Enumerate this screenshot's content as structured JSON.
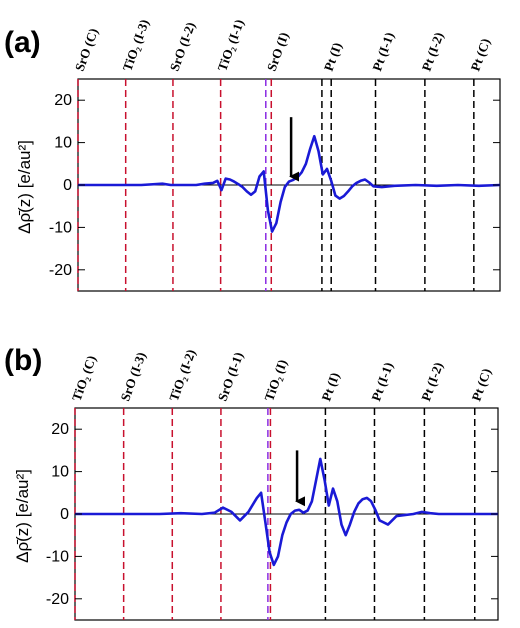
{
  "chart_data": [
    {
      "type": "line",
      "panel_label": "(a)",
      "ylabel": "Δρ̄(z)  [e/au²]",
      "ylim": [
        -25,
        25
      ],
      "yticks": [
        20,
        10,
        0,
        -10,
        -20
      ],
      "xlim": [
        0,
        100
      ],
      "grid": false,
      "layer_labels": [
        {
          "label": "SrO (C)",
          "x": 0,
          "color": "#c8102e"
        },
        {
          "label": "TiO₂ (I-3)",
          "x": 11.3,
          "color": "#c8102e"
        },
        {
          "label": "SrO (I-2)",
          "x": 22.5,
          "color": "#c8102e"
        },
        {
          "label": "TiO₂ (I-1)",
          "x": 33.8,
          "color": "#c8102e"
        },
        {
          "label": "SrO (I)",
          "x": 45.5,
          "color": "#c8102e"
        },
        {
          "label": "Pt (I)",
          "x": 59.0,
          "color": "#000000"
        },
        {
          "label": "Pt (I-1)",
          "x": 70.5,
          "color": "#000000"
        },
        {
          "label": "Pt (I-2)",
          "x": 82.2,
          "color": "#000000"
        },
        {
          "label": "Pt (C)",
          "x": 93.8,
          "color": "#000000"
        }
      ],
      "reference_lines": [
        {
          "x": 0,
          "color": "#c8102e"
        },
        {
          "x": 11.3,
          "color": "#c8102e"
        },
        {
          "x": 22.5,
          "color": "#c8102e"
        },
        {
          "x": 33.8,
          "color": "#c8102e"
        },
        {
          "x": 44.5,
          "color": "#8a2be2"
        },
        {
          "x": 45.8,
          "color": "#c8102e"
        },
        {
          "x": 57.8,
          "color": "#000000"
        },
        {
          "x": 60.0,
          "color": "#000000"
        },
        {
          "x": 70.5,
          "color": "#000000"
        },
        {
          "x": 82.2,
          "color": "#000000"
        },
        {
          "x": 93.8,
          "color": "#000000"
        }
      ],
      "arrow": {
        "x": 50.5,
        "y_from": 16,
        "y_to": 2
      },
      "series": [
        {
          "color": "#1a1ad6",
          "x": [
            0,
            5,
            10,
            15,
            20,
            22,
            24,
            26,
            28,
            30,
            32,
            33,
            34,
            35,
            36,
            37,
            38,
            39,
            40,
            41,
            42,
            43,
            44,
            45,
            46,
            47,
            48,
            49,
            50,
            51,
            52,
            53,
            54,
            55,
            56,
            57,
            58,
            59,
            60,
            61,
            62,
            63,
            64,
            65,
            66,
            67,
            68,
            69,
            70,
            72,
            75,
            80,
            85,
            90,
            95,
            100
          ],
          "y": [
            0,
            0,
            0,
            0,
            0.3,
            0,
            0,
            0,
            0,
            0.3,
            0.5,
            1,
            -1.2,
            1.5,
            1.3,
            0.8,
            0.2,
            -0.5,
            -1.5,
            -2.3,
            -1.5,
            2.0,
            3.2,
            -6,
            -11,
            -9,
            -4,
            -0.5,
            0.8,
            1.2,
            1.8,
            3.0,
            5.0,
            8.5,
            11.5,
            8.0,
            2.5,
            3.8,
            1.0,
            -2.5,
            -3.2,
            -2.6,
            -1.5,
            -0.3,
            0.5,
            1.0,
            1.3,
            0.6,
            -0.3,
            -0.5,
            -0.2,
            0,
            -0.2,
            0,
            -0.2,
            0
          ]
        }
      ]
    },
    {
      "type": "line",
      "panel_label": "(b)",
      "ylabel": "Δρ̄(z)  [e/au²]",
      "ylim": [
        -25,
        25
      ],
      "yticks": [
        20,
        10,
        0,
        -10,
        -20
      ],
      "xlim": [
        0,
        100
      ],
      "grid": false,
      "layer_labels": [
        {
          "label": "TiO₂ (C)",
          "x": 0,
          "color": "#c8102e"
        },
        {
          "label": "SrO (I-3)",
          "x": 11.5,
          "color": "#c8102e"
        },
        {
          "label": "TiO₂ (I-2)",
          "x": 23.0,
          "color": "#c8102e"
        },
        {
          "label": "SrO (I-1)",
          "x": 34.5,
          "color": "#c8102e"
        },
        {
          "label": "TiO₂ (I)",
          "x": 45.5,
          "color": "#c8102e"
        },
        {
          "label": "Pt (I)",
          "x": 59.0,
          "color": "#000000"
        },
        {
          "label": "Pt (I-1)",
          "x": 70.8,
          "color": "#000000"
        },
        {
          "label": "Pt (I-2)",
          "x": 82.6,
          "color": "#000000"
        },
        {
          "label": "Pt (C)",
          "x": 94.5,
          "color": "#000000"
        }
      ],
      "reference_lines": [
        {
          "x": 0,
          "color": "#c8102e"
        },
        {
          "x": 11.5,
          "color": "#c8102e"
        },
        {
          "x": 23.0,
          "color": "#c8102e"
        },
        {
          "x": 34.5,
          "color": "#c8102e"
        },
        {
          "x": 45.6,
          "color": "#8a2be2"
        },
        {
          "x": 46.2,
          "color": "#c8102e"
        },
        {
          "x": 59.2,
          "color": "#000000"
        },
        {
          "x": 70.8,
          "color": "#000000"
        },
        {
          "x": 82.6,
          "color": "#000000"
        },
        {
          "x": 94.5,
          "color": "#000000"
        }
      ],
      "arrow": {
        "x": 52.5,
        "y_from": 15,
        "y_to": 3
      },
      "series": [
        {
          "color": "#1a1ad6",
          "x": [
            0,
            5,
            10,
            15,
            20,
            25,
            30,
            33,
            35,
            37,
            39,
            41,
            43,
            44,
            45,
            46,
            47,
            48,
            49,
            50,
            51,
            52,
            53,
            54,
            55,
            56,
            57,
            58,
            59,
            60,
            61,
            62,
            63,
            64,
            65,
            66,
            67,
            68,
            69,
            70,
            71,
            72,
            74,
            76,
            80,
            82,
            84,
            86,
            90,
            95,
            100
          ],
          "y": [
            0,
            0,
            0,
            0,
            0,
            0.2,
            0,
            0.3,
            1.5,
            0.5,
            -1.5,
            0.5,
            3.8,
            5.0,
            -2,
            -9,
            -12,
            -10,
            -5,
            -2,
            0,
            0.8,
            1.0,
            0.3,
            0.8,
            3.0,
            8.0,
            13.0,
            8.0,
            2.0,
            6.0,
            3.0,
            -2.5,
            -5.0,
            -2.5,
            0.5,
            2.5,
            3.5,
            3.8,
            3.0,
            1.0,
            -1.5,
            -2.5,
            -0.5,
            0,
            0.5,
            0.2,
            0,
            0,
            0,
            0
          ]
        }
      ]
    }
  ]
}
